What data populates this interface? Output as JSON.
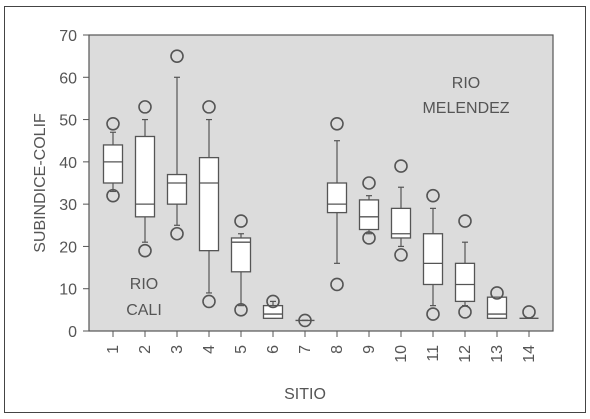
{
  "chart_data": {
    "type": "boxplot",
    "xlabel": "SITIO",
    "ylabel": "SUBINDICE-COLIF",
    "ylim": [
      0,
      70
    ],
    "yticks": [
      0,
      10,
      20,
      30,
      40,
      50,
      60,
      70
    ],
    "categories": [
      "1",
      "2",
      "3",
      "4",
      "5",
      "6",
      "7",
      "8",
      "9",
      "10",
      "11",
      "12",
      "13",
      "14"
    ],
    "annotations": [
      {
        "id": "rio-cali",
        "lines": [
          "RIO",
          "CALI"
        ]
      },
      {
        "id": "rio-melendez",
        "lines": [
          "RIO",
          "MELENDEZ"
        ]
      }
    ],
    "boxes": [
      {
        "x": "1",
        "q1": 35,
        "median": 40,
        "q3": 44,
        "whislo": 33,
        "whishi": 47,
        "outliers": [
          32,
          49
        ]
      },
      {
        "x": "2",
        "q1": 27,
        "median": 30,
        "q3": 46,
        "whislo": 21,
        "whishi": 50,
        "outliers": [
          19,
          53
        ]
      },
      {
        "x": "3",
        "q1": 30,
        "median": 35,
        "q3": 37,
        "whislo": 25,
        "whishi": 60,
        "outliers": [
          23,
          65
        ]
      },
      {
        "x": "4",
        "q1": 19,
        "median": 35,
        "q3": 41,
        "whislo": 9,
        "whishi": 50,
        "outliers": [
          7,
          53
        ]
      },
      {
        "x": "5",
        "q1": 14,
        "median": 21,
        "q3": 22,
        "whislo": 6,
        "whishi": 23,
        "outliers": [
          5,
          26
        ]
      },
      {
        "x": "6",
        "q1": 3,
        "median": 4,
        "q3": 6,
        "whislo": 3,
        "whishi": 7,
        "outliers": [
          7
        ]
      },
      {
        "x": "7",
        "q1": 2.5,
        "median": 2.5,
        "q3": 2.5,
        "whislo": 2.5,
        "whishi": 2.5,
        "outliers": [
          2.5
        ]
      },
      {
        "x": "8",
        "q1": 28,
        "median": 30,
        "q3": 35,
        "whislo": 16,
        "whishi": 45,
        "outliers": [
          11,
          49
        ]
      },
      {
        "x": "9",
        "q1": 24,
        "median": 27,
        "q3": 31,
        "whislo": 23,
        "whishi": 32,
        "outliers": [
          22,
          35
        ]
      },
      {
        "x": "10",
        "q1": 22,
        "median": 23,
        "q3": 29,
        "whislo": 20,
        "whishi": 34,
        "outliers": [
          18,
          39
        ]
      },
      {
        "x": "11",
        "q1": 11,
        "median": 16,
        "q3": 23,
        "whislo": 6,
        "whishi": 29,
        "outliers": [
          4,
          32
        ]
      },
      {
        "x": "12",
        "q1": 7,
        "median": 11,
        "q3": 16,
        "whislo": 6,
        "whishi": 21,
        "outliers": [
          4.5,
          26
        ]
      },
      {
        "x": "13",
        "q1": 3,
        "median": 4,
        "q3": 8,
        "whislo": 3,
        "whishi": 8,
        "outliers": [
          9
        ]
      },
      {
        "x": "14",
        "q1": 3,
        "median": 3,
        "q3": 3,
        "whislo": 3,
        "whishi": 3,
        "outliers": [
          4.5
        ]
      }
    ],
    "colors": {
      "plot_background": "#dcdcdc",
      "box_fill": "#ffffff",
      "stroke": "#555555",
      "text": "#555555"
    }
  }
}
